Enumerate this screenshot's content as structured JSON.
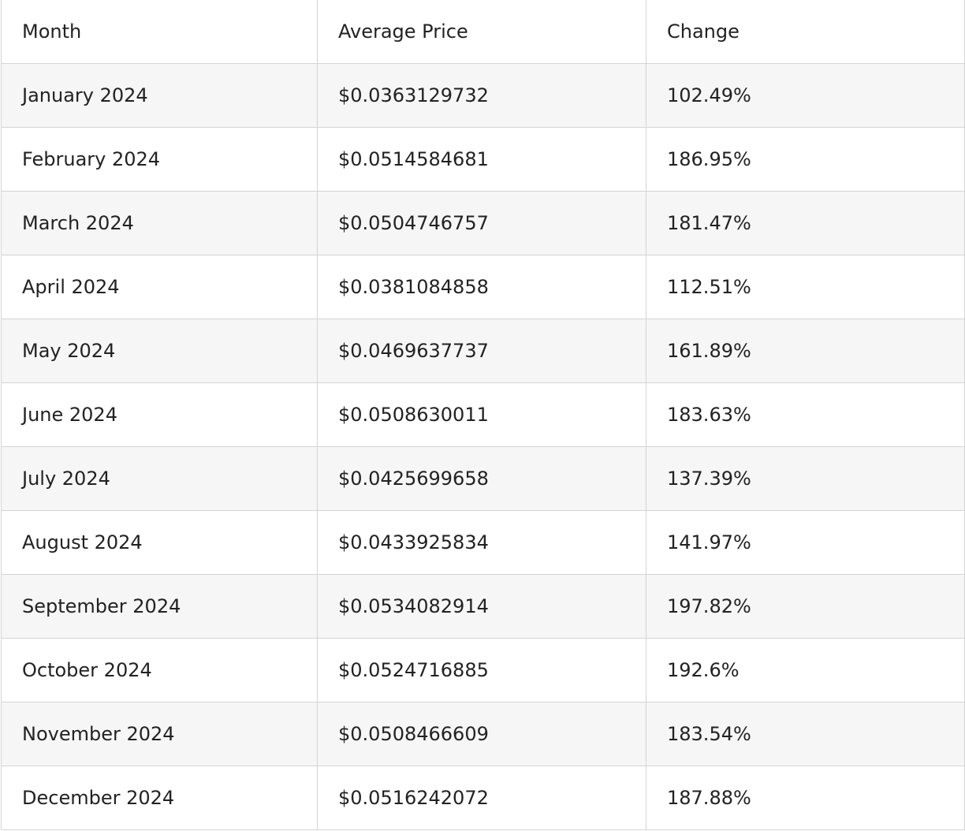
{
  "table": {
    "headers": [
      "Month",
      "Average Price",
      "Change"
    ],
    "rows": [
      [
        "January 2024",
        "$0.0363129732",
        "102.49%"
      ],
      [
        "February 2024",
        "$0.0514584681",
        "186.95%"
      ],
      [
        "March 2024",
        "$0.0504746757",
        "181.47%"
      ],
      [
        "April 2024",
        "$0.0381084858",
        "112.51%"
      ],
      [
        "May 2024",
        "$0.0469637737",
        "161.89%"
      ],
      [
        "June 2024",
        "$0.0508630011",
        "183.63%"
      ],
      [
        "July 2024",
        "$0.0425699658",
        "137.39%"
      ],
      [
        "August 2024",
        "$0.0433925834",
        "141.97%"
      ],
      [
        "September 2024",
        "$0.0534082914",
        "197.82%"
      ],
      [
        "October 2024",
        "$0.0524716885",
        "192.6%"
      ],
      [
        "November 2024",
        "$0.0508466609",
        "183.54%"
      ],
      [
        "December 2024",
        "$0.0516242072",
        "187.88%"
      ]
    ]
  }
}
